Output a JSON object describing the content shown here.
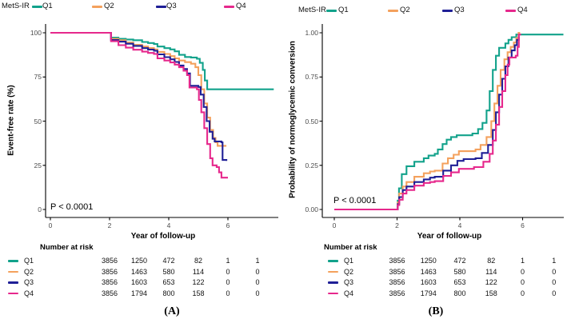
{
  "figure": {
    "background": "#ffffff",
    "legend_title": "MetS-IR"
  },
  "colors": {
    "q1": "#12A28B",
    "q2": "#F4A15D",
    "q3": "#1F1F96",
    "q4": "#E6288C",
    "axis": "#000000",
    "tick_text": "#4d4d4d"
  },
  "chart_data": [
    {
      "type": "line",
      "subtype": "kaplan-meier-step",
      "panel_label": "(A)",
      "legend_title": "MetS-IR",
      "ylabel": "Event-free rate (%)",
      "xlabel": "Year of follow-up",
      "pvalue": "P < 0.0001",
      "xlim": [
        0,
        7.7
      ],
      "ylim": [
        0,
        100
      ],
      "x_ticks": [
        0,
        2,
        4,
        6
      ],
      "x_tick_labels": [
        "0",
        "2",
        "4",
        "6"
      ],
      "y_ticks": [
        0,
        25,
        50,
        75,
        100
      ],
      "y_tick_labels": [
        "0",
        "25",
        "50",
        "75",
        "100"
      ],
      "grid": false,
      "legend_position": "top",
      "series": [
        {
          "name": "Q1",
          "color": "#12A28B",
          "points": [
            [
              0,
              100
            ],
            [
              2.05,
              97.3
            ],
            [
              2.3,
              96.6
            ],
            [
              2.55,
              96.2
            ],
            [
              2.8,
              95.8
            ],
            [
              3.1,
              94.8
            ],
            [
              3.3,
              94.2
            ],
            [
              3.5,
              93.6
            ],
            [
              3.62,
              92.2
            ],
            [
              3.85,
              91.3
            ],
            [
              4.05,
              90.6
            ],
            [
              4.2,
              89.5
            ],
            [
              4.35,
              87.5
            ],
            [
              4.55,
              86.3
            ],
            [
              4.75,
              86
            ],
            [
              4.95,
              85.3
            ],
            [
              5.05,
              83
            ],
            [
              5.15,
              79
            ],
            [
              5.22,
              73
            ],
            [
              5.3,
              68
            ],
            [
              7.55,
              68
            ]
          ]
        },
        {
          "name": "Q2",
          "color": "#F4A15D",
          "points": [
            [
              0,
              100
            ],
            [
              2.05,
              96.6
            ],
            [
              2.3,
              95.8
            ],
            [
              2.55,
              94.5
            ],
            [
              2.8,
              93.2
            ],
            [
              3.1,
              92.2
            ],
            [
              3.3,
              91.4
            ],
            [
              3.5,
              90.6
            ],
            [
              3.62,
              89.2
            ],
            [
              3.85,
              88
            ],
            [
              4.05,
              86.8
            ],
            [
              4.2,
              85.5
            ],
            [
              4.35,
              84.3
            ],
            [
              4.55,
              83.4
            ],
            [
              4.75,
              82.5
            ],
            [
              4.9,
              80.5
            ],
            [
              5.0,
              76
            ],
            [
              5.1,
              68
            ],
            [
              5.2,
              60
            ],
            [
              5.3,
              52
            ],
            [
              5.4,
              45
            ],
            [
              5.5,
              40.5
            ],
            [
              5.58,
              38
            ],
            [
              5.65,
              36
            ],
            [
              5.95,
              36
            ]
          ]
        },
        {
          "name": "Q3",
          "color": "#1F1F96",
          "points": [
            [
              0,
              100
            ],
            [
              2.05,
              95.9
            ],
            [
              2.3,
              95
            ],
            [
              2.55,
              93.8
            ],
            [
              2.8,
              92.6
            ],
            [
              3.1,
              91.3
            ],
            [
              3.3,
              90.5
            ],
            [
              3.5,
              89.8
            ],
            [
              3.62,
              87.8
            ],
            [
              3.85,
              86.2
            ],
            [
              4.05,
              85
            ],
            [
              4.2,
              83.5
            ],
            [
              4.35,
              81.5
            ],
            [
              4.5,
              79.5
            ],
            [
              4.62,
              77
            ],
            [
              4.72,
              70
            ],
            [
              5.0,
              69.3
            ],
            [
              5.08,
              65
            ],
            [
              5.18,
              58
            ],
            [
              5.28,
              50
            ],
            [
              5.38,
              44
            ],
            [
              5.48,
              40
            ],
            [
              5.55,
              38.5
            ],
            [
              5.78,
              38
            ],
            [
              5.82,
              28
            ],
            [
              5.95,
              27.5
            ]
          ]
        },
        {
          "name": "Q4",
          "color": "#E6288C",
          "points": [
            [
              0,
              100
            ],
            [
              2.05,
              95.2
            ],
            [
              2.3,
              93
            ],
            [
              2.55,
              91.6
            ],
            [
              2.8,
              90.4
            ],
            [
              3.1,
              89.3
            ],
            [
              3.3,
              88.6
            ],
            [
              3.5,
              88
            ],
            [
              3.62,
              85.5
            ],
            [
              3.85,
              84.3
            ],
            [
              4.05,
              83.2
            ],
            [
              4.2,
              82
            ],
            [
              4.35,
              80.5
            ],
            [
              4.5,
              78.5
            ],
            [
              4.62,
              76
            ],
            [
              4.7,
              69
            ],
            [
              4.95,
              68
            ],
            [
              5.02,
              62
            ],
            [
              5.1,
              55
            ],
            [
              5.2,
              46
            ],
            [
              5.3,
              37
            ],
            [
              5.4,
              29
            ],
            [
              5.48,
              25
            ],
            [
              5.62,
              24
            ],
            [
              5.7,
              21
            ],
            [
              5.78,
              18
            ],
            [
              6.0,
              18
            ]
          ]
        }
      ],
      "number_at_risk": {
        "header": "Number at risk",
        "times": [
          2,
          3,
          4,
          5,
          6,
          7
        ],
        "rows": [
          {
            "label": "Q1",
            "color": "#12A28B",
            "values": [
              "3856",
              "1250",
              "472",
              "82",
              "1",
              "1"
            ]
          },
          {
            "label": "Q2",
            "color": "#F4A15D",
            "values": [
              "3856",
              "1463",
              "580",
              "114",
              "0",
              "0"
            ]
          },
          {
            "label": "Q3",
            "color": "#1F1F96",
            "values": [
              "3856",
              "1603",
              "653",
              "122",
              "0",
              "0"
            ]
          },
          {
            "label": "Q4",
            "color": "#E6288C",
            "values": [
              "3856",
              "1794",
              "800",
              "158",
              "0",
              "0"
            ]
          }
        ]
      }
    },
    {
      "type": "line",
      "subtype": "kaplan-meier-step",
      "panel_label": "(B)",
      "legend_title": "MetS-IR",
      "ylabel": "Probability of normoglycemic conversion",
      "xlabel": "Year of follow-up",
      "pvalue": "P < 0.0001",
      "xlim": [
        0,
        7.4
      ],
      "ylim": [
        0,
        1
      ],
      "x_ticks": [
        0,
        2,
        4,
        6
      ],
      "x_tick_labels": [
        "0",
        "2",
        "4",
        "6"
      ],
      "y_ticks": [
        0,
        0.25,
        0.5,
        0.75,
        1
      ],
      "y_tick_labels": [
        "0.00",
        "0.25",
        "0.50",
        "0.75",
        "1.00"
      ],
      "grid": false,
      "legend_position": "top",
      "series": [
        {
          "name": "Q1",
          "color": "#12A28B",
          "points": [
            [
              0,
              0
            ],
            [
              2.02,
              0.05
            ],
            [
              2.06,
              0.12
            ],
            [
              2.15,
              0.2
            ],
            [
              2.3,
              0.245
            ],
            [
              2.55,
              0.27
            ],
            [
              2.85,
              0.29
            ],
            [
              3.0,
              0.305
            ],
            [
              3.2,
              0.315
            ],
            [
              3.3,
              0.34
            ],
            [
              3.45,
              0.37
            ],
            [
              3.58,
              0.395
            ],
            [
              3.72,
              0.41
            ],
            [
              3.9,
              0.42
            ],
            [
              4.4,
              0.43
            ],
            [
              4.58,
              0.455
            ],
            [
              4.72,
              0.49
            ],
            [
              4.85,
              0.56
            ],
            [
              4.95,
              0.67
            ],
            [
              5.05,
              0.79
            ],
            [
              5.15,
              0.87
            ],
            [
              5.25,
              0.915
            ],
            [
              5.45,
              0.94
            ],
            [
              5.55,
              0.96
            ],
            [
              5.65,
              0.975
            ],
            [
              5.8,
              0.99
            ],
            [
              7.3,
              0.99
            ]
          ]
        },
        {
          "name": "Q2",
          "color": "#F4A15D",
          "points": [
            [
              0,
              0
            ],
            [
              2.02,
              0.04
            ],
            [
              2.07,
              0.09
            ],
            [
              2.18,
              0.13
            ],
            [
              2.3,
              0.155
            ],
            [
              2.55,
              0.185
            ],
            [
              2.85,
              0.205
            ],
            [
              3.05,
              0.215
            ],
            [
              3.2,
              0.22
            ],
            [
              3.45,
              0.26
            ],
            [
              3.62,
              0.29
            ],
            [
              3.8,
              0.31
            ],
            [
              3.97,
              0.33
            ],
            [
              4.5,
              0.34
            ],
            [
              4.66,
              0.365
            ],
            [
              4.85,
              0.41
            ],
            [
              5.0,
              0.5
            ],
            [
              5.1,
              0.6
            ],
            [
              5.2,
              0.7
            ],
            [
              5.3,
              0.79
            ],
            [
              5.42,
              0.85
            ],
            [
              5.52,
              0.89
            ],
            [
              5.62,
              0.92
            ],
            [
              5.72,
              0.945
            ],
            [
              5.8,
              0.97
            ],
            [
              5.87,
              1.0
            ],
            [
              5.92,
              1.0
            ]
          ]
        },
        {
          "name": "Q3",
          "color": "#1F1F96",
          "points": [
            [
              0,
              0
            ],
            [
              2.02,
              0.03
            ],
            [
              2.07,
              0.07
            ],
            [
              2.18,
              0.11
            ],
            [
              2.3,
              0.13
            ],
            [
              2.55,
              0.155
            ],
            [
              2.85,
              0.17
            ],
            [
              3.05,
              0.18
            ],
            [
              3.2,
              0.185
            ],
            [
              3.47,
              0.22
            ],
            [
              3.72,
              0.25
            ],
            [
              3.92,
              0.275
            ],
            [
              4.12,
              0.285
            ],
            [
              4.5,
              0.29
            ],
            [
              4.7,
              0.32
            ],
            [
              4.9,
              0.365
            ],
            [
              5.05,
              0.45
            ],
            [
              5.15,
              0.55
            ],
            [
              5.25,
              0.65
            ],
            [
              5.35,
              0.74
            ],
            [
              5.45,
              0.81
            ],
            [
              5.55,
              0.86
            ],
            [
              5.65,
              0.9
            ],
            [
              5.75,
              0.93
            ],
            [
              5.82,
              0.96
            ],
            [
              5.88,
              0.98
            ]
          ]
        },
        {
          "name": "Q4",
          "color": "#E6288C",
          "points": [
            [
              0,
              0
            ],
            [
              2.02,
              0.025
            ],
            [
              2.07,
              0.055
            ],
            [
              2.18,
              0.09
            ],
            [
              2.3,
              0.11
            ],
            [
              2.55,
              0.135
            ],
            [
              2.85,
              0.15
            ],
            [
              3.05,
              0.155
            ],
            [
              3.2,
              0.16
            ],
            [
              3.47,
              0.19
            ],
            [
              3.72,
              0.21
            ],
            [
              3.97,
              0.23
            ],
            [
              4.45,
              0.24
            ],
            [
              4.75,
              0.27
            ],
            [
              4.95,
              0.315
            ],
            [
              5.05,
              0.39
            ],
            [
              5.15,
              0.48
            ],
            [
              5.25,
              0.58
            ],
            [
              5.35,
              0.67
            ],
            [
              5.45,
              0.76
            ],
            [
              5.52,
              0.82
            ],
            [
              5.58,
              0.86
            ],
            [
              5.78,
              0.87
            ],
            [
              5.84,
              0.92
            ],
            [
              5.88,
              0.99
            ],
            [
              5.95,
              0.99
            ]
          ]
        }
      ],
      "number_at_risk": {
        "header": "Number at risk",
        "times": [
          2,
          3,
          4,
          5,
          6,
          7
        ],
        "rows": [
          {
            "label": "Q1",
            "color": "#12A28B",
            "values": [
              "3856",
              "1250",
              "472",
              "82",
              "1",
              "1"
            ]
          },
          {
            "label": "Q2",
            "color": "#F4A15D",
            "values": [
              "3856",
              "1463",
              "580",
              "114",
              "0",
              "0"
            ]
          },
          {
            "label": "Q3",
            "color": "#1F1F96",
            "values": [
              "3856",
              "1603",
              "653",
              "122",
              "0",
              "0"
            ]
          },
          {
            "label": "Q4",
            "color": "#E6288C",
            "values": [
              "3856",
              "1794",
              "800",
              "158",
              "0",
              "0"
            ]
          }
        ]
      }
    }
  ]
}
